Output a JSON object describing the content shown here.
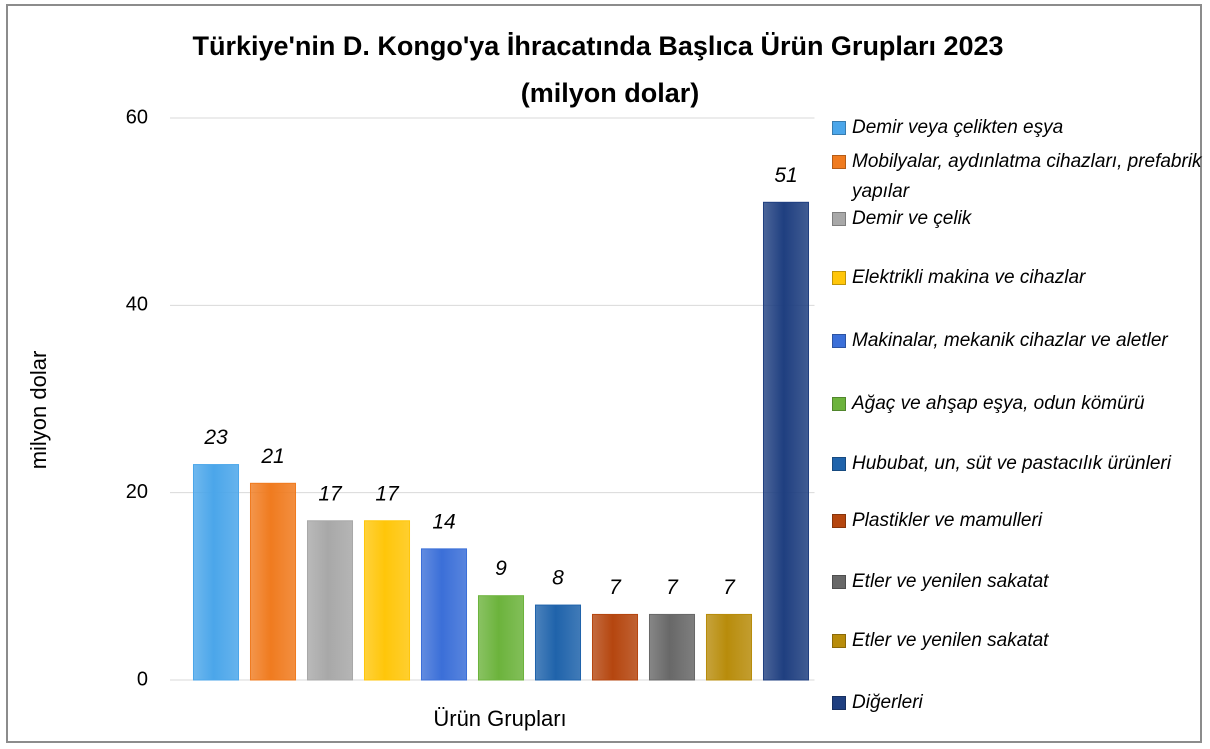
{
  "chart_data": {
    "type": "bar",
    "title": "Türkiye'nin D. Kongo'ya İhracatında Başlıca Ürün Grupları 2023",
    "subtitle": "(milyon dolar)",
    "x_label": "Ürün Grupları",
    "y_label": "milyon dolar",
    "categories": [
      "Demir veya çelikten eşya",
      "Mobilyalar, aydınlatma cihazları, prefabrik yapılar",
      "Demir ve çelik",
      "Elektrikli makina ve cihazlar",
      "Makinalar, mekanik cihazlar ve aletler",
      "Ağaç ve ahşap eşya, odun kömürü",
      "Hububat, un, süt ve pastacılık ürünleri",
      "Plastikler ve mamulleri",
      "Etler ve yenilen sakatat",
      "Etler ve yenilen sakatat",
      "Diğerleri"
    ],
    "values": [
      23,
      21,
      17,
      17,
      14,
      9,
      8,
      7,
      7,
      7,
      51
    ],
    "colors": [
      "#4ba6ea",
      "#f07b1f",
      "#a8a8a8",
      "#ffc60a",
      "#3b6fd8",
      "#6cb33c",
      "#1f63ab",
      "#b5460f",
      "#686868",
      "#b88c0b",
      "#1f3f80"
    ],
    "ylim": [
      0,
      60
    ],
    "yticks": [
      0,
      20,
      40,
      60
    ],
    "grid": true,
    "legend": "right"
  }
}
